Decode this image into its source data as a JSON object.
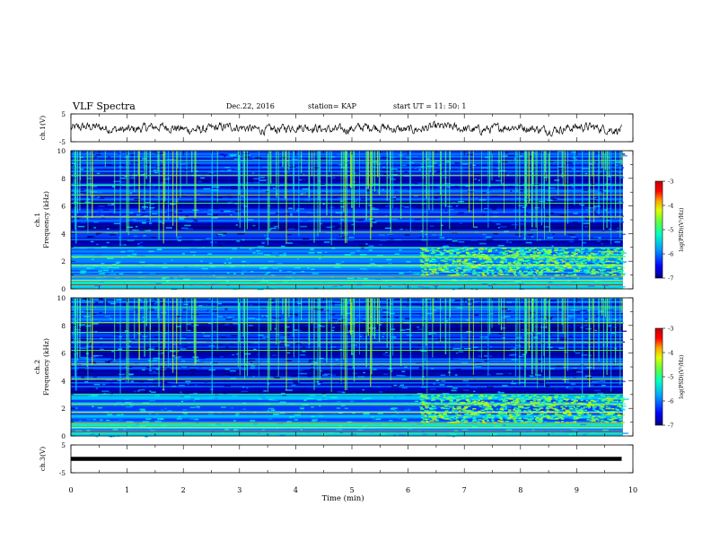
{
  "header": {
    "title": "VLF Spectra",
    "date": "Dec.22, 2016",
    "station": "station= KAP",
    "start_ut": "start  UT =   11: 50: 1"
  },
  "chart_data": [
    {
      "type": "line",
      "panel": "ch1-waveform",
      "ylabel": "ch.1(V)",
      "ylim": [
        -5,
        5
      ],
      "yticks": [
        "5",
        "-5"
      ],
      "xlim": [
        0,
        10
      ],
      "description_values": "noisy waveform oscillating roughly between -3 and +2 V",
      "trace_extent_min": [
        0,
        9.8
      ]
    },
    {
      "type": "heatmap",
      "panel": "ch1-spectrogram",
      "ylabel": "ch.1\nFrequency (kHz)",
      "ylabel_line1": "ch.1",
      "ylabel_line2": "Frequency (kHz)",
      "ylim": [
        0,
        10
      ],
      "yticks": [
        "0",
        "2",
        "4",
        "6",
        "8",
        "10"
      ],
      "xlim": [
        0,
        10
      ],
      "colorbar": {
        "label": "log(PSD)(V²/Hz)",
        "range": [
          -7,
          -3
        ],
        "ticks": [
          "-3",
          "-4",
          "-5",
          "-6",
          "-7"
        ]
      },
      "enhanced_band_kHz": [
        1,
        3
      ],
      "enhanced_from_min": 6.2
    },
    {
      "type": "heatmap",
      "panel": "ch2-spectrogram",
      "ylabel_line1": "ch.2",
      "ylabel_line2": "Frequency (kHz)",
      "ylim": [
        0,
        10
      ],
      "yticks": [
        "0",
        "2",
        "4",
        "6",
        "8",
        "10"
      ],
      "xlim": [
        0,
        10
      ],
      "colorbar": {
        "label": "log(PSD)(V²/Hz)",
        "range": [
          -7,
          -3
        ],
        "ticks": [
          "-3",
          "-4",
          "-5",
          "-6",
          "-7"
        ]
      },
      "enhanced_band_kHz": [
        1,
        3
      ],
      "enhanced_from_min": 6.2
    },
    {
      "type": "line",
      "panel": "ch3-waveform",
      "ylabel": "ch.3(V)",
      "ylim": [
        -5,
        5
      ],
      "yticks": [
        "5",
        "-5"
      ],
      "xlim": [
        0,
        10
      ],
      "constant_value": 0,
      "trace_extent_min": [
        0,
        9.8
      ]
    }
  ],
  "xaxis": {
    "label": "Time (min)",
    "ticks": [
      "0",
      "1",
      "2",
      "3",
      "4",
      "5",
      "6",
      "7",
      "8",
      "9",
      "10"
    ]
  },
  "colors": {
    "colormap": [
      "#00007f",
      "#0000ff",
      "#0080ff",
      "#00e0ff",
      "#40ff80",
      "#c0ff00",
      "#ffff00",
      "#ff8000",
      "#ff0000",
      "#a00000"
    ]
  }
}
